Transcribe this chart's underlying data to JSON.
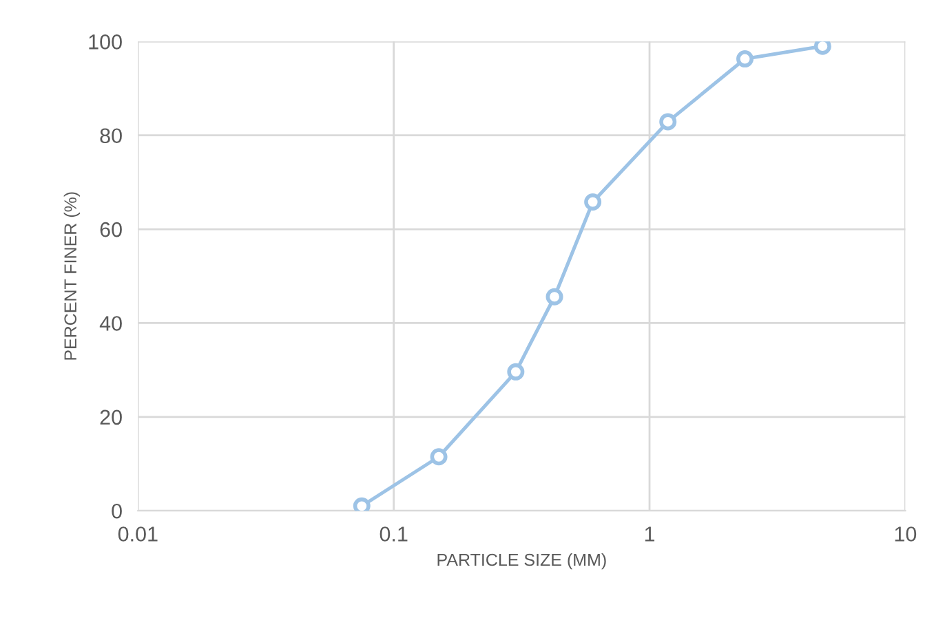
{
  "chart_data": {
    "type": "line",
    "xlabel": "PARTICLE SIZE (MM)",
    "ylabel": "PERCENT FINER (%)",
    "log": "x",
    "x": [
      0.075,
      0.15,
      0.3,
      0.425,
      0.6,
      1.18,
      2.36,
      4.75
    ],
    "series": [
      {
        "color": "#9dc3e6",
        "values": [
          1.0,
          11.5,
          29.6,
          45.6,
          65.8,
          82.9,
          96.3,
          99.0
        ]
      }
    ],
    "xlim": [
      0.01,
      10
    ],
    "xticks": [
      {
        "value": 0.01,
        "label": "0.01"
      },
      {
        "value": 0.1,
        "label": "0.1"
      },
      {
        "value": 1,
        "label": "1"
      },
      {
        "value": 10,
        "label": "10"
      }
    ],
    "ylim": [
      0,
      100
    ],
    "yticks": [
      0,
      20,
      40,
      60,
      80,
      100
    ],
    "grid": true,
    "marker": "circle",
    "line_style": "solid"
  }
}
